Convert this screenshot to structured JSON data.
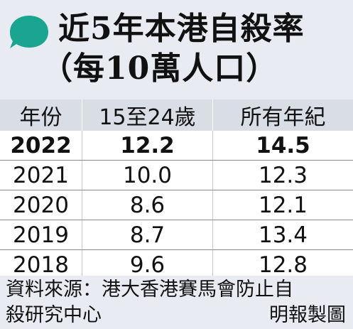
{
  "title": {
    "line1": "近5年本港自殺率",
    "line2": "（每10萬人口）"
  },
  "colors": {
    "accent": "#19a58f",
    "panel": "#e8ecf2",
    "header_row": "#d9dee6"
  },
  "table": {
    "headers": [
      "年份",
      "15至24歲",
      "所有年紀"
    ],
    "rows": [
      {
        "year": "2022",
        "youth": "12.2",
        "all": "14.5",
        "bold": true
      },
      {
        "year": "2021",
        "youth": "10.0",
        "all": "12.3",
        "bold": false
      },
      {
        "year": "2020",
        "youth": "8.6",
        "all": "12.1",
        "bold": false
      },
      {
        "year": "2019",
        "youth": "8.7",
        "all": "13.4",
        "bold": false
      },
      {
        "year": "2018",
        "youth": "9.6",
        "all": "12.8",
        "bold": false
      }
    ]
  },
  "footer": {
    "source_line1": "資料來源：港大香港賽馬會防止自",
    "source_line2": "殺研究中心",
    "credit": "明報製圖"
  }
}
